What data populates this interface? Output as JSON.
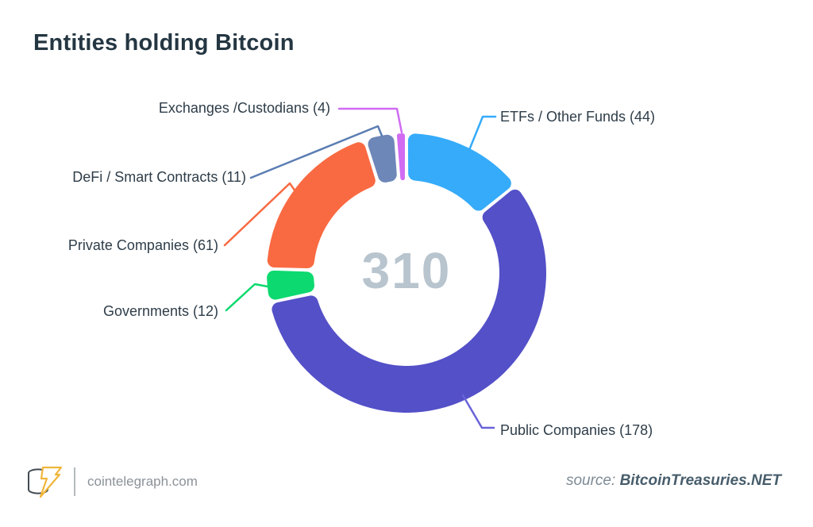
{
  "header": {
    "title": "Entities holding Bitcoin"
  },
  "chart_data": {
    "type": "pie",
    "subtype": "donut",
    "title": "Entities holding Bitcoin",
    "total": "310",
    "start_angle_deg": 0,
    "direction": "clockwise",
    "segments": [
      {
        "label": "ETFs / Other Funds",
        "value": 44,
        "display": "ETFs / Other Funds (44)",
        "color": "#35abfa"
      },
      {
        "label": "Public Companies",
        "value": 178,
        "display": "Public Companies (178)",
        "color": "#5450c8",
        "line_color": "#6a63d8"
      },
      {
        "label": "Governments",
        "value": 12,
        "display": "Governments (12)",
        "color": "#0cd96f"
      },
      {
        "label": "Private Companies",
        "value": 61,
        "display": "Private Companies (61)",
        "color": "#f96a42"
      },
      {
        "label": "DeFi / Smart Contracts",
        "value": 11,
        "display": "DeFi / Smart Contracts (11)",
        "color": "#6d87b8",
        "line_color": "#5b7db2"
      },
      {
        "label": "Exchanges /Custodians",
        "value": 4,
        "display": "Exchanges /Custodians (4)",
        "color": "#d06bf2"
      }
    ]
  },
  "footer": {
    "site": "cointelegraph.com",
    "source_prefix": "source:",
    "source_name": "BitcoinTreasuries.NET"
  }
}
